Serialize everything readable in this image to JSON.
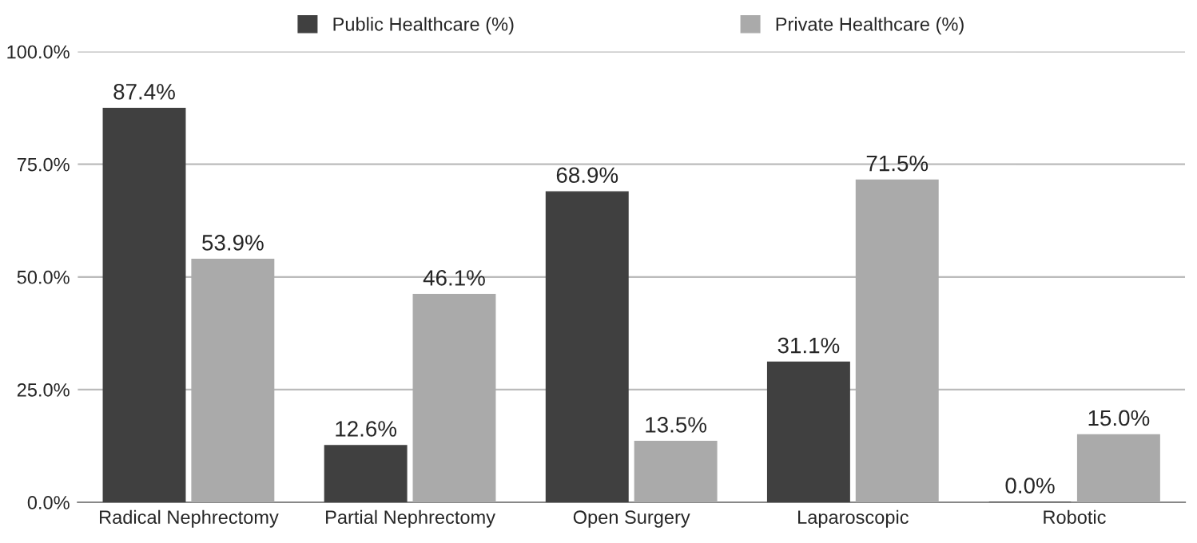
{
  "chart_data": {
    "type": "bar",
    "categories": [
      "Radical Nephrectomy",
      "Partial Nephrectomy",
      "Open Surgery",
      "Laparoscopic",
      "Robotic"
    ],
    "series": [
      {
        "name": "Public Healthcare (%)",
        "color": "#404040",
        "values": [
          87.4,
          12.6,
          68.9,
          31.1,
          0.0
        ],
        "value_labels": [
          "87.4%",
          "12.6%",
          "68.9%",
          "31.1%",
          "0.0%"
        ]
      },
      {
        "name": "Private Healthcare (%)",
        "color": "#aaaaaa",
        "values": [
          53.9,
          46.1,
          13.5,
          71.5,
          15.0
        ],
        "value_labels": [
          "53.9%",
          "46.1%",
          "13.5%",
          "71.5%",
          "15.0%"
        ]
      }
    ],
    "ylim": [
      0,
      100
    ],
    "yticks": [
      {
        "value": 0,
        "label": "0.0%"
      },
      {
        "value": 25,
        "label": "25.0%"
      },
      {
        "value": 50,
        "label": "50.0%"
      },
      {
        "value": 75,
        "label": "75.0%"
      },
      {
        "value": 100,
        "label": "100.0%"
      }
    ],
    "grid": "y",
    "legend": "top"
  }
}
